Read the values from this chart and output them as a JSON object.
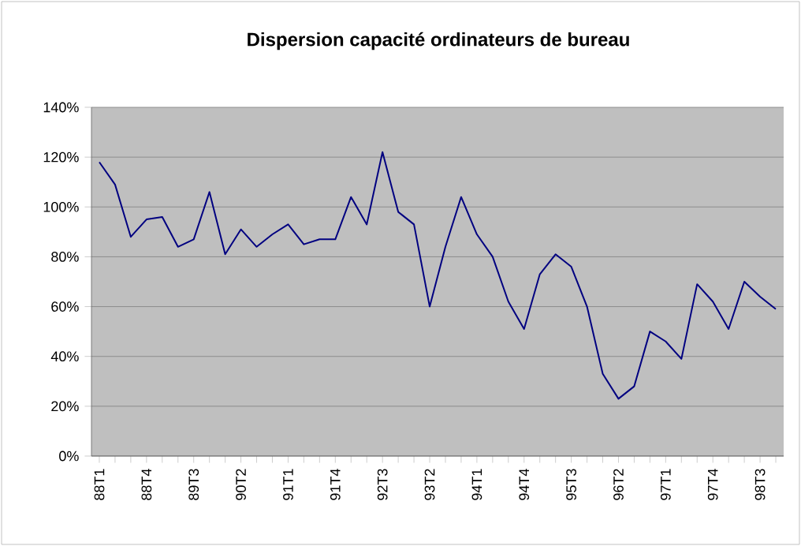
{
  "chart_data": {
    "type": "line",
    "title": "Dispersion capacité ordinateurs de bureau",
    "categories": [
      "88T1",
      null,
      null,
      "88T4",
      null,
      null,
      "89T3",
      null,
      null,
      "90T2",
      null,
      null,
      "91T1",
      null,
      null,
      "91T4",
      null,
      null,
      "92T3",
      null,
      null,
      "93T2",
      null,
      null,
      "94T1",
      null,
      null,
      "94T4",
      null,
      null,
      "95T3",
      null,
      null,
      "96T2",
      null,
      null,
      "97T1",
      null,
      null,
      "97T4",
      null,
      null,
      "98T3",
      null
    ],
    "series": [
      {
        "color": "#000080",
        "values": [
          118,
          109,
          88,
          95,
          96,
          84,
          87,
          106,
          81,
          91,
          84,
          89,
          93,
          85,
          87,
          87,
          104,
          93,
          122,
          98,
          93,
          60,
          84,
          104,
          89,
          80,
          62,
          51,
          73,
          81,
          76,
          60,
          33,
          23,
          28,
          50,
          46,
          39,
          69,
          62,
          51,
          70,
          64,
          59
        ]
      }
    ],
    "ylim": [
      0,
      140
    ],
    "yticks": [
      {
        "value": 0,
        "label": "0%"
      },
      {
        "value": 20,
        "label": "20%"
      },
      {
        "value": 40,
        "label": "40%"
      },
      {
        "value": 60,
        "label": "60%"
      },
      {
        "value": 80,
        "label": "80%"
      },
      {
        "value": 100,
        "label": "100%"
      },
      {
        "value": 120,
        "label": "120%"
      },
      {
        "value": 140,
        "label": "140%"
      }
    ],
    "grid": "y",
    "marker": "none",
    "line_style": "solid"
  }
}
